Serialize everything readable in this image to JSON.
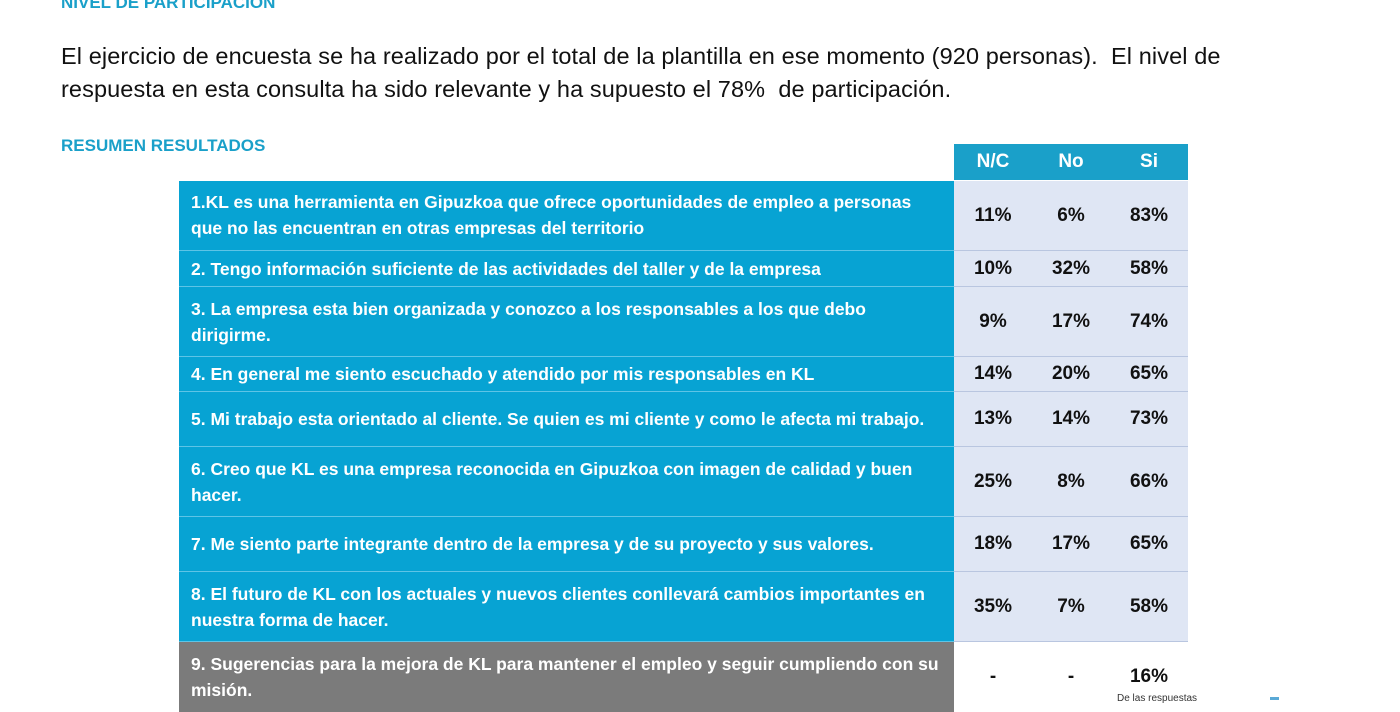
{
  "headings": {
    "participacion": "NIVEL DE PARTICIPACIÓN",
    "resumen": "RESUMEN RESULTADOS"
  },
  "intro": {
    "line1": "El ejercicio de encuesta se ha realizado por el total de la plantilla en ese momento (920 personas).  El nivel de",
    "line2": "respuesta en esta consulta ha sido relevante y ha supuesto el 78%  de participación."
  },
  "table": {
    "headers": [
      "N/C",
      "No",
      "Si"
    ],
    "rows": [
      {
        "q": " 1.KL es una herramienta en Gipuzkoa que ofrece oportunidades de empleo a personas que no las encuentran en otras empresas del territorio",
        "nc": "11%",
        "no": "6%",
        "si": "83%"
      },
      {
        "q": " 2. Tengo información suficiente de las actividades del taller y de la empresa",
        "nc": "10%",
        "no": "32%",
        "si": "58%"
      },
      {
        "q": " 3. La empresa esta bien organizada y conozco a los responsables a los que debo dirigirme.",
        "nc": "9%",
        "no": "17%",
        "si": "74%"
      },
      {
        "q": " 4. En general me siento escuchado y atendido por mis responsables en KL",
        "nc": "14%",
        "no": "20%",
        "si": "65%"
      },
      {
        "q": " 5. Mi trabajo esta orientado al cliente. Se quien es mi cliente y como le afecta mi trabajo.",
        "nc": "13%",
        "no": "14%",
        "si": "73%"
      },
      {
        "q": " 6. Creo que KL es una empresa reconocida en Gipuzkoa con imagen de calidad y buen hacer.",
        "nc": "25%",
        "no": "8%",
        "si": "66%"
      },
      {
        "q": " 7. Me siento parte integrante dentro de la empresa y de su proyecto y sus valores.",
        "nc": "18%",
        "no": "17%",
        "si": "65%"
      },
      {
        "q": " 8. El futuro de KL con los actuales y nuevos clientes conllevará cambios importantes en nuestra forma de hacer.",
        "nc": "35%",
        "no": "7%",
        "si": "58%"
      },
      {
        "q": " 9. Sugerencias para la mejora de KL para mantener el empleo y seguir cumpliendo con su misión.",
        "nc": "-",
        "no": "-",
        "si": "16%"
      }
    ]
  },
  "footnote": "De las respuestas",
  "colors": {
    "accent": "#1aa0c9",
    "row_blue": "#07a3d3",
    "row_gray": "#7b7b7b",
    "value_cell": "#dfe6f4"
  }
}
